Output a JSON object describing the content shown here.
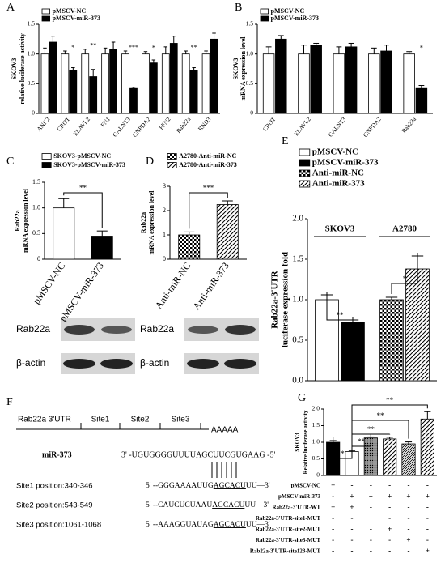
{
  "chart_data": [
    {
      "type": "bar",
      "label": "A",
      "ylabel": [
        "SKOV3",
        "relative luciferase activity"
      ],
      "categories": [
        "ANK2",
        "CROT",
        "ELAVL2",
        "FN1",
        "GALNT3",
        "GNPDA2",
        "PFN2",
        "Rab22a",
        "RND3"
      ],
      "series": [
        {
          "name": "pMSCV-NC",
          "color": "#ffffff",
          "values": [
            1,
            1,
            1,
            1,
            1,
            1,
            1,
            1,
            1
          ],
          "errors": [
            0.1,
            0.05,
            0.08,
            0.1,
            0.05,
            0.04,
            0.12,
            0.05,
            0.05
          ]
        },
        {
          "name": "pMSCV-miR-373",
          "color": "#000000",
          "values": [
            1.2,
            0.72,
            0.62,
            1.08,
            0.42,
            0.85,
            1.18,
            0.72,
            1.25
          ],
          "errors": [
            0.1,
            0.05,
            0.12,
            0.12,
            0.02,
            0.05,
            0.12,
            0.05,
            0.1
          ]
        }
      ],
      "annotations": [
        null,
        "*",
        "**",
        null,
        "***",
        "*",
        null,
        "**",
        null
      ],
      "ylim": [
        0,
        1.5
      ],
      "yticks": [
        0,
        0.5,
        {
          "value": 1,
          "label": "1.0"
        },
        1.5
      ]
    },
    {
      "type": "bar",
      "label": "B",
      "ylabel": [
        "SKOV3",
        "mRNA expression level"
      ],
      "categories": [
        "CROT",
        "ELAVL2",
        "GALNT3",
        "GNPDA2",
        "Rab22a"
      ],
      "series": [
        {
          "name": "pMSCV-NC",
          "color": "#ffffff",
          "values": [
            1,
            1,
            1,
            1,
            1
          ],
          "errors": [
            0.12,
            0.15,
            0.12,
            0.1,
            0.04
          ]
        },
        {
          "name": "pMSCV-miR-373",
          "color": "#000000",
          "values": [
            1.25,
            1.15,
            1.12,
            1.05,
            0.42
          ],
          "errors": [
            0.06,
            0.03,
            0.06,
            0.1,
            0.05
          ]
        }
      ],
      "annotations": [
        null,
        null,
        null,
        null,
        "*"
      ],
      "ylim": [
        0,
        1.5
      ],
      "yticks": [
        0,
        0.5,
        {
          "value": 1,
          "label": "1.0"
        },
        1.5
      ]
    },
    {
      "type": "bar",
      "label": "C",
      "ylabel": [
        "Rab22a",
        "mRNA expression level"
      ],
      "legend": [
        "SKOV3-pMSCV-NC",
        "SKOV3-pMSCV-miR-373"
      ],
      "categories": [
        "pMSCV-NC",
        "pMSCV-miR-373"
      ],
      "values": [
        1.0,
        0.45
      ],
      "errors": [
        0.18,
        0.1
      ],
      "colors": [
        "#ffffff",
        "#000000"
      ],
      "annotations": [
        "**"
      ],
      "ylim": [
        0,
        1.5
      ],
      "yticks": [
        0,
        0.5,
        {
          "value": 1,
          "label": "1.0"
        },
        1.5
      ]
    },
    {
      "type": "bar",
      "label": "D",
      "ylabel": [
        "Rab22a",
        "mRNA expression level"
      ],
      "legend": [
        "A2780-Anti-miR-NC",
        "A2780-Anti-miR-373"
      ],
      "categories": [
        "Anti-miR-NC",
        "Anti-miR-373"
      ],
      "values": [
        1.0,
        2.25
      ],
      "errors": [
        0.12,
        0.15
      ],
      "colors": [
        "#ffffff",
        "#ffffff"
      ],
      "patterns": [
        "checker",
        "hatch"
      ],
      "annotations": [
        "***"
      ],
      "ylim": [
        0,
        3
      ],
      "yticks": [
        0,
        1,
        2,
        3
      ]
    },
    {
      "type": "bar",
      "label": "E",
      "ylabel": [
        "Rab22a-3'UTR",
        "luciferase expression fold"
      ],
      "categories": [
        "SKOV3",
        "A2780"
      ],
      "series": [
        {
          "name": "pMSCV-NC",
          "color": "#ffffff",
          "pattern": null,
          "values": [
            1.0,
            null
          ],
          "errors": [
            0.06,
            null
          ]
        },
        {
          "name": "pMSCV-miR-373",
          "color": "#000000",
          "pattern": null,
          "values": [
            0.72,
            null
          ],
          "errors": [
            0.03,
            null
          ]
        },
        {
          "name": "Anti-miR-NC",
          "color": "#ffffff",
          "pattern": "checker",
          "values": [
            null,
            1.0
          ],
          "errors": [
            null,
            0.03
          ]
        },
        {
          "name": "Anti-miR-373",
          "color": "#ffffff",
          "pattern": "hatch",
          "values": [
            null,
            1.38
          ],
          "errors": [
            null,
            0.16
          ]
        }
      ],
      "annotations": [
        "**",
        "*"
      ],
      "ylim": [
        0,
        2
      ],
      "yticks": [
        {
          "value": 0,
          "label": "0.0"
        },
        0.5,
        {
          "value": 1,
          "label": "1.0"
        },
        1.5,
        {
          "value": 2,
          "label": "2.0"
        }
      ]
    },
    {
      "type": "bar",
      "label": "G",
      "ylabel": [
        "SKOV3",
        "Relative luciferase activity"
      ],
      "values": [
        1.0,
        0.72,
        1.13,
        1.1,
        0.95,
        1.7
      ],
      "errors": [
        0.05,
        0.03,
        0.03,
        0.05,
        0.06,
        0.22
      ],
      "colors": [
        "#000000",
        "#ffffff",
        "#999999",
        "#ffffff",
        "#ffffff",
        "#ffffff"
      ],
      "patterns": [
        null,
        null,
        "dots",
        "hatch",
        "hatch-dense",
        "hatch"
      ],
      "annotations": [
        "*",
        "**",
        "**",
        "**",
        "**"
      ],
      "ylim": [
        0,
        2
      ],
      "yticks": [
        0,
        0.5,
        {
          "value": 1,
          "label": "1.0"
        },
        1.5,
        {
          "value": 2,
          "label": "2.0"
        }
      ],
      "conditions": [
        {
          "name": "pMSCV-NC",
          "marks": [
            "+",
            "-",
            "-",
            "-",
            "-",
            "-"
          ]
        },
        {
          "name": "pMSCV-miR-373",
          "marks": [
            "-",
            "+",
            "+",
            "+",
            "+",
            "+"
          ]
        },
        {
          "name": "Rab22a-3'UTR-WT",
          "marks": [
            "+",
            "+",
            "-",
            "-",
            "-",
            "-"
          ]
        },
        {
          "name": "Rab22a-3'UTR-site1-MUT",
          "marks": [
            "-",
            "-",
            "+",
            "-",
            "-",
            "-"
          ]
        },
        {
          "name": "Rab22a-3'UTR-site2-MUT",
          "marks": [
            "-",
            "-",
            "-",
            "+",
            "-",
            "-"
          ]
        },
        {
          "name": "Rab22a-3'UTR-site3-MUT",
          "marks": [
            "-",
            "-",
            "-",
            "-",
            "+",
            "-"
          ]
        },
        {
          "name": "Rab22a-3'UTR-site123-MUT",
          "marks": [
            "-",
            "-",
            "-",
            "-",
            "-",
            "+"
          ]
        }
      ]
    }
  ],
  "blots": [
    {
      "labels": [
        "Rab22a",
        "β-actin"
      ]
    },
    {
      "labels": [
        "Rab22a",
        "β-actin"
      ]
    }
  ],
  "diagram": {
    "label": "F",
    "utr": "Rab22a 3'UTR",
    "sites": [
      "Site1",
      "Site2",
      "Site3"
    ],
    "tail": "AAAAA",
    "mirna": "miR-373",
    "mirna_seq": "3' -UGUGGGGUUUUAGCUUCGUGAAG -5'",
    "site_rows": [
      {
        "position": "Site1 position:340-346",
        "prefix": "5' --GGGAAAAUUG",
        "seed": "AGCACU",
        "suffix": "UU—3'"
      },
      {
        "position": "Site2 position:543-549",
        "prefix": "5' --CAUCUCUAAU",
        "seed": "AGCACU",
        "suffix": "UU—3'"
      },
      {
        "position": "Site3 position:1061-1068",
        "prefix": "5' --AAAGGUAUAG",
        "seed": "AGCACU",
        "suffix": "UU—3'"
      }
    ]
  }
}
